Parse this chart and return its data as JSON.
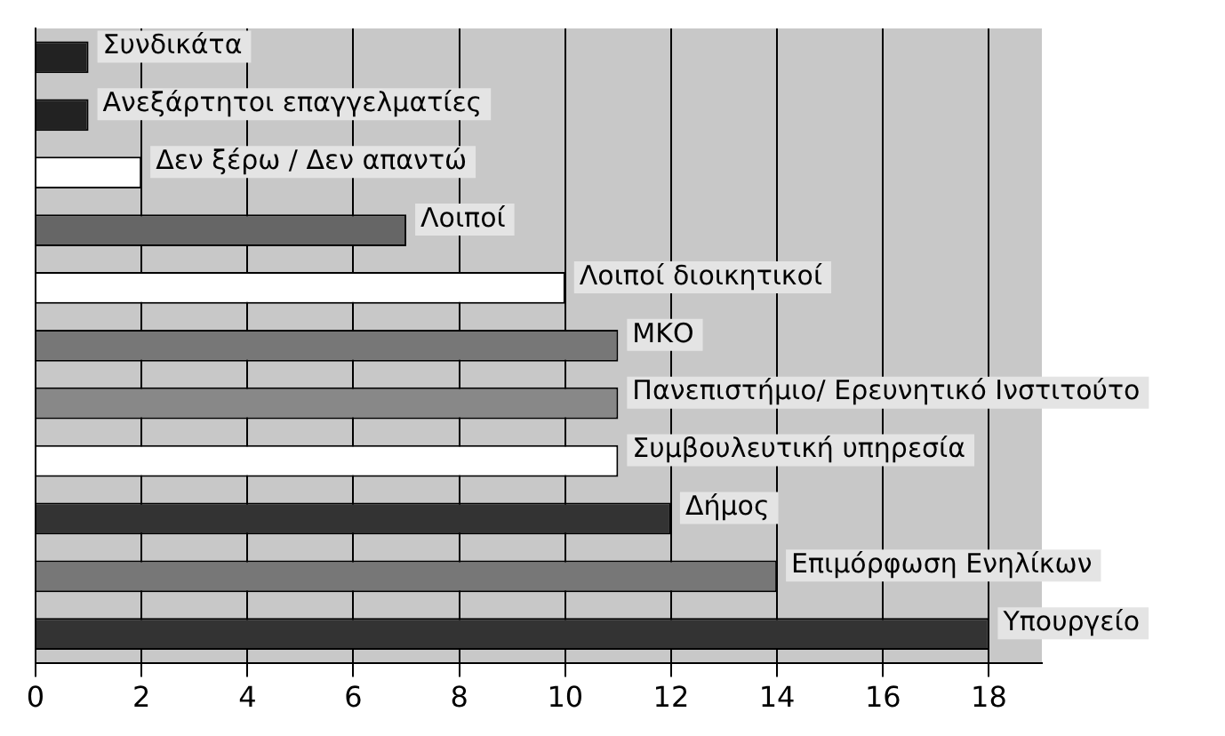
{
  "chart_data": {
    "type": "bar",
    "orientation": "horizontal",
    "categories": [
      "Συνδικάτα",
      "Ανεξάρτητοι επαγγελματίες",
      "Δεν ξέρω / Δεν απαντώ",
      "Λοιποί",
      "Λοιποί διοικητικοί",
      "ΜΚΟ",
      "Πανεπιστήμιο/ Ερευνητικό Ινστιτούτο",
      "Συμβουλευτική υπηρεσία",
      "Δήμος",
      "Επιμόρφωση Ενηλίκων",
      "Υπουργείο"
    ],
    "values": [
      1,
      1,
      2,
      7,
      10,
      11,
      11,
      11,
      12,
      14,
      18
    ],
    "colors": [
      "#222222",
      "#222222",
      "#ffffff",
      "#666666",
      "#ffffff",
      "#777777",
      "#888888",
      "#ffffff",
      "#333333",
      "#777777",
      "#333333"
    ],
    "xlim": [
      0,
      19
    ],
    "xticks": [
      0,
      2,
      4,
      6,
      8,
      10,
      12,
      14,
      16,
      18
    ],
    "grid": "x",
    "legend": false
  }
}
